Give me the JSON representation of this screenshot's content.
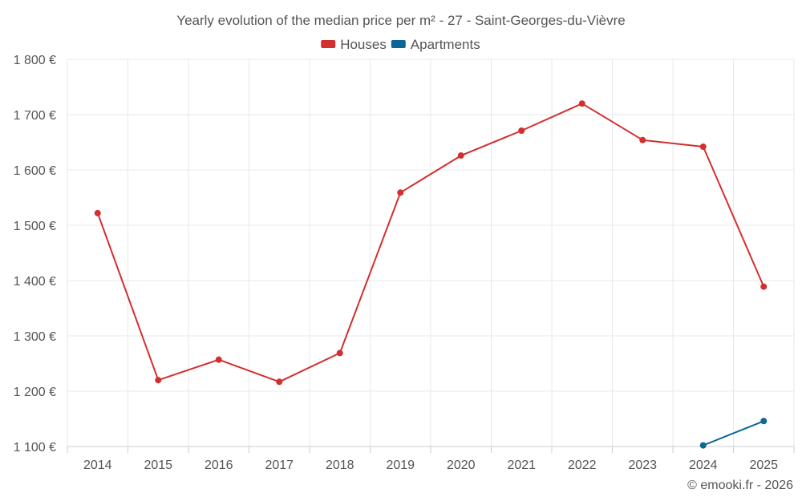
{
  "chart_data": {
    "type": "line",
    "title": "Yearly evolution of the median price per m² - 27 - Saint-Georges-du-Vièvre",
    "categories": [
      "2014",
      "2015",
      "2016",
      "2017",
      "2018",
      "2019",
      "2020",
      "2021",
      "2022",
      "2023",
      "2024",
      "2025"
    ],
    "y_ticks": [
      1100,
      1200,
      1300,
      1400,
      1500,
      1600,
      1700,
      1800
    ],
    "y_tick_labels": [
      "1 100 €",
      "1 200 €",
      "1 300 €",
      "1 400 €",
      "1 500 €",
      "1 600 €",
      "1 700 €",
      "1 800 €"
    ],
    "ylim": [
      1100,
      1800
    ],
    "xlabel": "",
    "ylabel": "",
    "legend_position": "top-center",
    "grid": true,
    "series": [
      {
        "name": "Houses",
        "color": "#d32f2f",
        "values": [
          1522,
          1220,
          1257,
          1217,
          1269,
          1559,
          1626,
          1671,
          1720,
          1654,
          1642,
          1389
        ]
      },
      {
        "name": "Apartments",
        "color": "#0d6694",
        "values": [
          null,
          null,
          null,
          null,
          null,
          null,
          null,
          null,
          null,
          null,
          1102,
          1146
        ]
      }
    ]
  },
  "credit": "© emooki.fr - 2026"
}
